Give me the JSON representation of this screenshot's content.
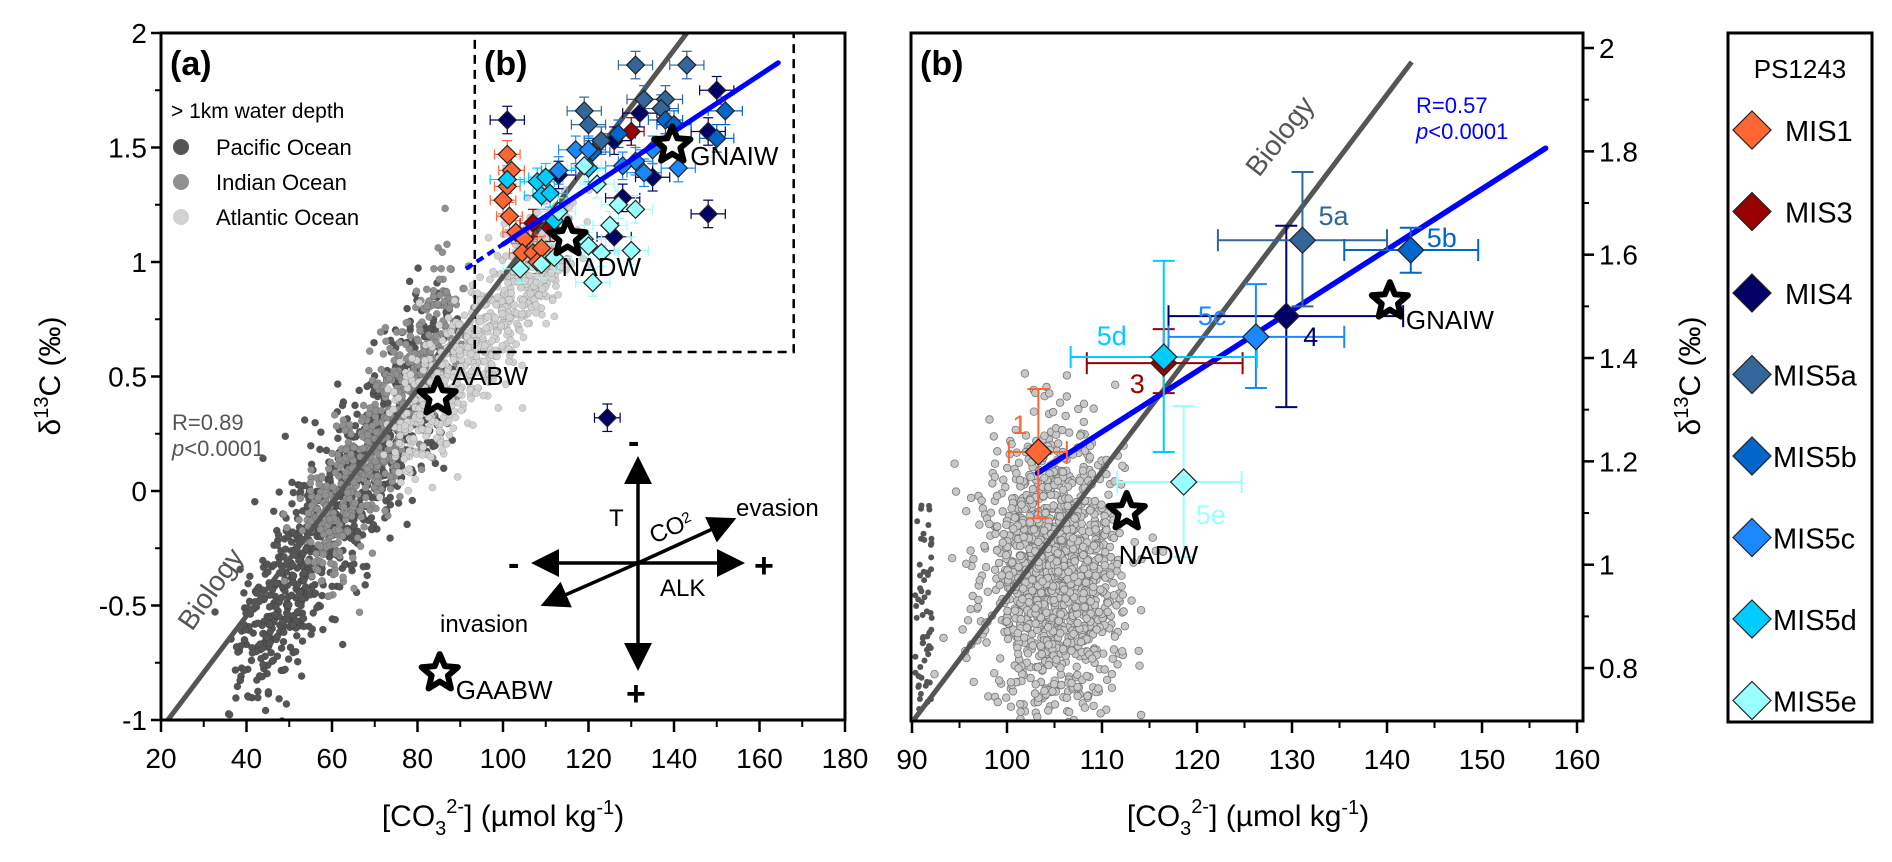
{
  "chart_data": [
    {
      "panel": "a",
      "type": "scatter",
      "label": "(a)",
      "inset_label": "(b)",
      "xlabel": "[CO3 2-] (µmol kg-1)",
      "xlabel_parts": {
        "pre": "[CO",
        "sub": "3",
        "sup": "2-",
        "post": "] (µmol kg",
        "sup2": "-1",
        "end": ")"
      },
      "ylabel": "δ13C (‰)",
      "ylabel_parts": {
        "pre": "δ",
        "sup": "13",
        "post": "C (‰)"
      },
      "xlim": [
        20,
        180
      ],
      "ylim": [
        -1,
        2
      ],
      "xticks": [
        20,
        40,
        60,
        80,
        100,
        120,
        140,
        160,
        180
      ],
      "xtick_labels": [
        "20",
        "40",
        "60",
        "80",
        "100",
        "120",
        "140",
        "160",
        "180"
      ],
      "yticks": [
        -1,
        -0.5,
        0,
        0.5,
        1,
        1.5,
        2
      ],
      "ytick_labels": [
        "-1",
        "-0.5",
        "0",
        "0.5",
        "1",
        "1.5",
        "2"
      ],
      "legend_title": "> 1km water depth",
      "legend": [
        {
          "name": "Pacific Ocean",
          "color": "#555555"
        },
        {
          "name": "Indian Ocean",
          "color": "#909090"
        },
        {
          "name": "Atlantic Ocean",
          "color": "#d2d2d2"
        }
      ],
      "ocean_clouds": [
        {
          "name": "Pacific Ocean",
          "color": "#555555",
          "x_range": [
            38,
            90
          ],
          "center_line": {
            "x0": 40,
            "y0": -0.7,
            "x1": 85,
            "y1": 0.6
          },
          "spread": 0.18,
          "n": 900
        },
        {
          "name": "Indian Ocean",
          "color": "#909090",
          "x_range": [
            55,
            95
          ],
          "center_line": {
            "x0": 55,
            "y0": -0.3,
            "x1": 88,
            "y1": 0.8
          },
          "spread": 0.14,
          "n": 600
        },
        {
          "name": "Atlantic Ocean",
          "color": "#d2d2d2",
          "x_range": [
            75,
            125
          ],
          "center_line": {
            "x0": 75,
            "y0": 0.2,
            "x1": 115,
            "y1": 1.15
          },
          "spread": 0.12,
          "n": 700
        }
      ],
      "biology_line": {
        "label": "Biology",
        "x": [
          21.6,
          143
        ],
        "y": [
          -1,
          2
        ],
        "color": "#555555"
      },
      "biology_stats": {
        "r": "R=0.89",
        "p": "p<0.0001",
        "color": "#555555"
      },
      "fit_line": {
        "x": [
          91.3,
          164.4
        ],
        "y": [
          0.97,
          1.87
        ],
        "color": "#0000ff",
        "dashed_until_x": 100
      },
      "inset_box": {
        "x": [
          93.4,
          168
        ],
        "y": [
          0.607,
          2
        ]
      },
      "stars": [
        {
          "name": "GNAIW",
          "x": 139.6,
          "y": 1.51
        },
        {
          "name": "NADW",
          "x": 115.1,
          "y": 1.105
        },
        {
          "name": "AABW",
          "x": 84.7,
          "y": 0.41
        },
        {
          "name": "GAABW",
          "x": 85.2,
          "y": -0.795
        }
      ],
      "mis_points": [
        {
          "stage": "MIS1",
          "x": 101,
          "y": 1.47,
          "xe": 3,
          "ye": 0.06
        },
        {
          "stage": "MIS1",
          "x": 102,
          "y": 1.4,
          "xe": 3,
          "ye": 0.06
        },
        {
          "stage": "MIS1",
          "x": 101,
          "y": 1.33,
          "xe": 3,
          "ye": 0.06
        },
        {
          "stage": "MIS1",
          "x": 100,
          "y": 1.27,
          "xe": 3,
          "ye": 0.06
        },
        {
          "stage": "MIS1",
          "x": 101.5,
          "y": 1.2,
          "xe": 3,
          "ye": 0.06
        },
        {
          "stage": "MIS1",
          "x": 103,
          "y": 1.13,
          "xe": 3,
          "ye": 0.05
        },
        {
          "stage": "MIS1",
          "x": 105,
          "y": 1.1,
          "xe": 3,
          "ye": 0.05
        },
        {
          "stage": "MIS1",
          "x": 104.5,
          "y": 1.04,
          "xe": 3,
          "ye": 0.05
        },
        {
          "stage": "MIS1",
          "x": 107,
          "y": 1.04,
          "xe": 3,
          "ye": 0.05
        },
        {
          "stage": "MIS1",
          "x": 109,
          "y": 1.06,
          "xe": 3,
          "ye": 0.05
        },
        {
          "stage": "MIS1",
          "x": 108,
          "y": 1.0,
          "xe": 3,
          "ye": 0.05
        },
        {
          "stage": "MIS3",
          "x": 107,
          "y": 1.17,
          "xe": 3,
          "ye": 0.06
        },
        {
          "stage": "MIS3",
          "x": 111,
          "y": 1.15,
          "xe": 3,
          "ye": 0.06
        },
        {
          "stage": "MIS3",
          "x": 130,
          "y": 1.57,
          "xe": 3,
          "ye": 0.06
        },
        {
          "stage": "MIS4",
          "x": 101,
          "y": 1.62,
          "xe": 4,
          "ye": 0.06
        },
        {
          "stage": "MIS4",
          "x": 113,
          "y": 1.38,
          "xe": 4,
          "ye": 0.06
        },
        {
          "stage": "MIS4",
          "x": 126,
          "y": 1.53,
          "xe": 4,
          "ye": 0.06
        },
        {
          "stage": "MIS4",
          "x": 132,
          "y": 1.65,
          "xe": 4,
          "ye": 0.06
        },
        {
          "stage": "MIS4",
          "x": 135,
          "y": 1.37,
          "xe": 4,
          "ye": 0.06
        },
        {
          "stage": "MIS4",
          "x": 128,
          "y": 1.28,
          "xe": 4,
          "ye": 0.06
        },
        {
          "stage": "MIS4",
          "x": 126,
          "y": 1.11,
          "xe": 4,
          "ye": 0.06
        },
        {
          "stage": "MIS4",
          "x": 150,
          "y": 1.75,
          "xe": 4,
          "ye": 0.06
        },
        {
          "stage": "MIS4",
          "x": 148,
          "y": 1.57,
          "xe": 4,
          "ye": 0.06
        },
        {
          "stage": "MIS4",
          "x": 148,
          "y": 1.21,
          "xe": 4,
          "ye": 0.06
        },
        {
          "stage": "MIS4",
          "x": 124.4,
          "y": 0.32,
          "xe": 3,
          "ye": 0.06
        },
        {
          "stage": "MIS5a",
          "x": 119,
          "y": 1.66,
          "xe": 4,
          "ye": 0.06
        },
        {
          "stage": "MIS5a",
          "x": 120,
          "y": 1.6,
          "xe": 4,
          "ye": 0.06
        },
        {
          "stage": "MIS5a",
          "x": 131,
          "y": 1.86,
          "xe": 4,
          "ye": 0.06
        },
        {
          "stage": "MIS5a",
          "x": 143,
          "y": 1.86,
          "xe": 4,
          "ye": 0.06
        },
        {
          "stage": "MIS5a",
          "x": 133,
          "y": 1.71,
          "xe": 4,
          "ye": 0.06
        },
        {
          "stage": "MIS5a",
          "x": 138,
          "y": 1.71,
          "xe": 4,
          "ye": 0.06
        },
        {
          "stage": "MIS5a",
          "x": 137,
          "y": 1.67,
          "xe": 4,
          "ye": 0.06
        },
        {
          "stage": "MIS5a",
          "x": 123,
          "y": 1.53,
          "xe": 4,
          "ye": 0.06
        },
        {
          "stage": "MIS5b",
          "x": 138,
          "y": 1.62,
          "xe": 4,
          "ye": 0.06
        },
        {
          "stage": "MIS5b",
          "x": 140,
          "y": 1.6,
          "xe": 4,
          "ye": 0.06
        },
        {
          "stage": "MIS5b",
          "x": 127,
          "y": 1.56,
          "xe": 4,
          "ye": 0.06
        },
        {
          "stage": "MIS5b",
          "x": 152,
          "y": 1.66,
          "xe": 4,
          "ye": 0.06
        },
        {
          "stage": "MIS5b",
          "x": 150,
          "y": 1.54,
          "xe": 4,
          "ye": 0.06
        },
        {
          "stage": "MIS5b",
          "x": 121,
          "y": 1.48,
          "xe": 4,
          "ye": 0.06
        },
        {
          "stage": "MIS5c",
          "x": 117,
          "y": 1.49,
          "xe": 4,
          "ye": 0.06
        },
        {
          "stage": "MIS5c",
          "x": 120,
          "y": 1.49,
          "xe": 4,
          "ye": 0.06
        },
        {
          "stage": "MIS5c",
          "x": 113,
          "y": 1.4,
          "xe": 4,
          "ye": 0.06
        },
        {
          "stage": "MIS5c",
          "x": 131,
          "y": 1.44,
          "xe": 4,
          "ye": 0.06
        },
        {
          "stage": "MIS5c",
          "x": 135,
          "y": 1.49,
          "xe": 4,
          "ye": 0.06
        },
        {
          "stage": "MIS5c",
          "x": 133,
          "y": 1.39,
          "xe": 4,
          "ye": 0.06
        },
        {
          "stage": "MIS5c",
          "x": 128,
          "y": 1.42,
          "xe": 4,
          "ye": 0.06
        },
        {
          "stage": "MIS5c",
          "x": 141,
          "y": 1.41,
          "xe": 4,
          "ye": 0.06
        },
        {
          "stage": "MIS5d",
          "x": 101,
          "y": 1.36,
          "xe": 4,
          "ye": 0.06
        },
        {
          "stage": "MIS5d",
          "x": 108,
          "y": 1.35,
          "xe": 4,
          "ye": 0.06
        },
        {
          "stage": "MIS5d",
          "x": 110,
          "y": 1.37,
          "xe": 4,
          "ye": 0.06
        },
        {
          "stage": "MIS5d",
          "x": 109,
          "y": 1.29,
          "xe": 4,
          "ye": 0.06
        },
        {
          "stage": "MIS5d",
          "x": 111,
          "y": 1.3,
          "xe": 4,
          "ye": 0.06
        },
        {
          "stage": "MIS5d",
          "x": 112,
          "y": 1.18,
          "xe": 4,
          "ye": 0.06
        },
        {
          "stage": "MIS5d",
          "x": 120,
          "y": 1.41,
          "xe": 4,
          "ye": 0.06
        },
        {
          "stage": "MIS5e",
          "x": 119,
          "y": 1.42,
          "xe": 4,
          "ye": 0.06
        },
        {
          "stage": "MIS5e",
          "x": 122,
          "y": 1.34,
          "xe": 4,
          "ye": 0.06
        },
        {
          "stage": "MIS5e",
          "x": 113,
          "y": 1.22,
          "xe": 4,
          "ye": 0.06
        },
        {
          "stage": "MIS5e",
          "x": 127,
          "y": 1.25,
          "xe": 4,
          "ye": 0.06
        },
        {
          "stage": "MIS5e",
          "x": 131,
          "y": 1.23,
          "xe": 4,
          "ye": 0.06
        },
        {
          "stage": "MIS5e",
          "x": 125,
          "y": 1.16,
          "xe": 4,
          "ye": 0.06
        },
        {
          "stage": "MIS5e",
          "x": 130,
          "y": 1.05,
          "xe": 4,
          "ye": 0.06
        },
        {
          "stage": "MIS5e",
          "x": 119,
          "y": 1.1,
          "xe": 4,
          "ye": 0.06
        },
        {
          "stage": "MIS5e",
          "x": 120,
          "y": 1.07,
          "xe": 4,
          "ye": 0.06
        },
        {
          "stage": "MIS5e",
          "x": 123,
          "y": 1.04,
          "xe": 4,
          "ye": 0.06
        },
        {
          "stage": "MIS5e",
          "x": 112,
          "y": 1.02,
          "xe": 4,
          "ye": 0.06
        },
        {
          "stage": "MIS5e",
          "x": 104,
          "y": 0.97,
          "xe": 4,
          "ye": 0.06
        },
        {
          "stage": "MIS5e",
          "x": 109,
          "y": 0.99,
          "xe": 4,
          "ye": 0.06
        },
        {
          "stage": "MIS5e",
          "x": 121,
          "y": 0.91,
          "xe": 4,
          "ye": 0.06
        }
      ],
      "process_diagram": {
        "vertical_label": "T",
        "horizontal_label": "ALK",
        "diagonal_label": "CO",
        "diagonal_sub": "2",
        "up_sign": "-",
        "down_sign": "+",
        "left_sign": "-",
        "right_sign": "+",
        "diag_up_label": "evasion",
        "diag_down_label": "invasion"
      }
    },
    {
      "panel": "b",
      "type": "scatter",
      "label": "(b)",
      "xlabel": "[CO3 2-] (µmol kg-1)",
      "ylabel": "δ13C (‰)",
      "xlim": [
        90,
        160
      ],
      "ylim": [
        0.7,
        2.03
      ],
      "xticks": [
        90,
        100,
        110,
        120,
        130,
        140,
        150,
        160
      ],
      "xtick_labels": [
        "90",
        "100",
        "110",
        "120",
        "130",
        "140",
        "150",
        "160"
      ],
      "yticks": [
        0.8,
        1.0,
        1.2,
        1.4,
        1.6,
        1.8,
        2.0
      ],
      "ytick_labels": [
        "0.8",
        "1",
        "1.2",
        "1.4",
        "1.6",
        "1.8",
        "2"
      ],
      "yaxis_side": "right",
      "biology_line": {
        "label": "Biology",
        "x": [
          90.2,
          142.6
        ],
        "y": [
          0.7,
          1.973
        ],
        "color": "#555555"
      },
      "fit_line": {
        "x": [
          103.2,
          156.7
        ],
        "y": [
          1.177,
          1.806
        ],
        "color": "#0000ff"
      },
      "fit_stats": {
        "r": "R=0.57",
        "p": "p<0.0001",
        "color": "#0000ff"
      },
      "background_cloud": {
        "color": "#c8c8c8",
        "center": [
          105,
          0.98
        ],
        "sx": 3.5,
        "sy": 0.13,
        "n": 1400
      },
      "stars": [
        {
          "name": "GNAIW",
          "x": 140.3,
          "y": 1.51
        },
        {
          "name": "NADW",
          "x": 112.6,
          "y": 1.102
        }
      ],
      "mis_means": [
        {
          "stage": "MIS1",
          "label": "1",
          "x": 103.3,
          "y": 1.218,
          "xmin": 100.2,
          "xmax": 106.3,
          "ymin": 1.09,
          "ymax": 1.34
        },
        {
          "stage": "MIS3",
          "label": "3",
          "x": 116.5,
          "y": 1.39,
          "xmin": 108.4,
          "xmax": 124.8,
          "ymin": 1.332,
          "ymax": 1.456
        },
        {
          "stage": "MIS4",
          "label": "4",
          "x": 129.4,
          "y": 1.481,
          "xmin": 117.0,
          "xmax": 141.7,
          "ymin": 1.305,
          "ymax": 1.656
        },
        {
          "stage": "MIS5a",
          "label": "5a",
          "x": 131.1,
          "y": 1.628,
          "xmin": 122.2,
          "xmax": 140.0,
          "ymin": 1.5,
          "ymax": 1.76
        },
        {
          "stage": "MIS5b",
          "label": "5b",
          "x": 142.5,
          "y": 1.609,
          "xmin": 135.5,
          "xmax": 149.6,
          "ymin": 1.565,
          "ymax": 1.652
        },
        {
          "stage": "MIS5c",
          "label": "5c",
          "x": 126.2,
          "y": 1.441,
          "xmin": 117.0,
          "xmax": 135.5,
          "ymin": 1.342,
          "ymax": 1.543
        },
        {
          "stage": "MIS5d",
          "label": "5d",
          "x": 116.5,
          "y": 1.402,
          "xmin": 106.7,
          "xmax": 126.3,
          "ymin": 1.218,
          "ymax": 1.588
        },
        {
          "stage": "MIS5e",
          "label": "5e",
          "x": 118.6,
          "y": 1.16,
          "xmin": 111.6,
          "xmax": 124.7,
          "ymin": 1.015,
          "ymax": 1.307
        }
      ]
    }
  ],
  "legend": {
    "title": "PS1243",
    "items": [
      {
        "stage": "MIS1",
        "label": "MIS1",
        "color": "#ff6633"
      },
      {
        "stage": "MIS3",
        "label": "MIS3",
        "color": "#990000"
      },
      {
        "stage": "MIS4",
        "label": "MIS4",
        "color": "#000066"
      },
      {
        "stage": "MIS5a",
        "label": "MIS5a",
        "color": "#336699"
      },
      {
        "stage": "MIS5b",
        "label": "MIS5b",
        "color": "#0066cc"
      },
      {
        "stage": "MIS5c",
        "label": "MIS5c",
        "color": "#1a88ff"
      },
      {
        "stage": "MIS5d",
        "label": "MIS5d",
        "color": "#00ccff"
      },
      {
        "stage": "MIS5e",
        "label": "MIS5e",
        "color": "#99ffff"
      }
    ],
    "label_colors": {
      "MIS1": "#ff6633",
      "MIS3": "#990000",
      "MIS4": "#000066",
      "MIS5a": "#336699",
      "MIS5b": "#0066cc",
      "MIS5c": "#1a88ff",
      "MIS5d": "#00ccff",
      "MIS5e": "#99ffff"
    }
  }
}
